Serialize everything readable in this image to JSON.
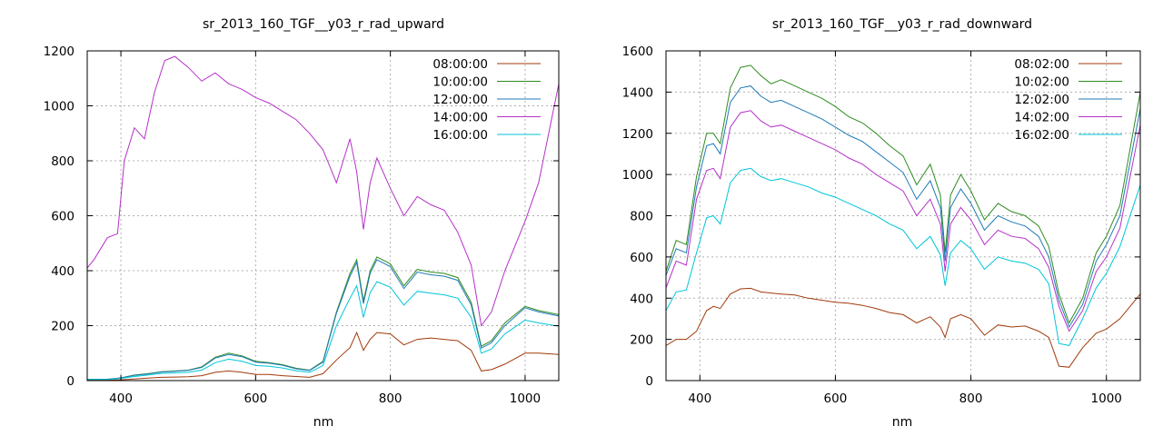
{
  "chart_data": [
    {
      "type": "line",
      "title": "sr_2013_160_TGF__y03_r_rad_upward",
      "xlabel": "nm",
      "ylabel": "",
      "xlim": [
        350,
        1050
      ],
      "ylim": [
        0,
        1200
      ],
      "xticks": [
        400,
        600,
        800,
        1000
      ],
      "yticks": [
        0,
        200,
        400,
        600,
        800,
        1000,
        1200
      ],
      "grid": true,
      "legend": "top-right",
      "series": [
        {
          "name": "08:00:00",
          "color": "#a03a0b",
          "x": [
            350,
            380,
            400,
            420,
            440,
            460,
            480,
            500,
            520,
            540,
            560,
            580,
            600,
            620,
            640,
            660,
            680,
            700,
            720,
            740,
            750,
            760,
            770,
            780,
            800,
            820,
            840,
            860,
            880,
            900,
            920,
            935,
            950,
            970,
            1000,
            1020,
            1050
          ],
          "y": [
            2,
            2,
            3,
            6,
            9,
            12,
            13,
            14,
            18,
            30,
            35,
            30,
            22,
            22,
            18,
            15,
            12,
            25,
            75,
            120,
            175,
            110,
            150,
            175,
            170,
            130,
            150,
            155,
            150,
            145,
            110,
            35,
            40,
            60,
            100,
            100,
            95
          ]
        },
        {
          "name": "10:00:00",
          "color": "#2e8b1f",
          "x": [
            350,
            380,
            400,
            420,
            440,
            460,
            480,
            500,
            520,
            540,
            560,
            580,
            600,
            620,
            640,
            660,
            680,
            700,
            720,
            740,
            750,
            760,
            770,
            780,
            800,
            820,
            840,
            860,
            880,
            900,
            920,
            935,
            950,
            970,
            1000,
            1020,
            1050
          ],
          "y": [
            5,
            5,
            10,
            20,
            25,
            32,
            35,
            38,
            50,
            85,
            100,
            90,
            70,
            65,
            58,
            45,
            38,
            70,
            250,
            390,
            440,
            290,
            400,
            450,
            425,
            345,
            405,
            395,
            390,
            375,
            285,
            125,
            145,
            210,
            270,
            255,
            240
          ]
        },
        {
          "name": "12:00:00",
          "color": "#1f7ab8",
          "x": [
            350,
            380,
            400,
            420,
            440,
            460,
            480,
            500,
            520,
            540,
            560,
            580,
            600,
            620,
            640,
            660,
            680,
            700,
            720,
            740,
            750,
            760,
            770,
            780,
            800,
            820,
            840,
            860,
            880,
            900,
            920,
            935,
            950,
            970,
            1000,
            1020,
            1050
          ],
          "y": [
            5,
            5,
            10,
            19,
            24,
            31,
            34,
            37,
            48,
            82,
            95,
            87,
            67,
            63,
            56,
            43,
            37,
            67,
            245,
            380,
            430,
            280,
            390,
            440,
            415,
            335,
            395,
            385,
            380,
            365,
            275,
            118,
            138,
            200,
            265,
            250,
            235
          ]
        },
        {
          "name": "14:00:00",
          "color": "#b531c8",
          "x": [
            350,
            360,
            380,
            395,
            405,
            420,
            435,
            450,
            465,
            480,
            500,
            520,
            540,
            560,
            580,
            600,
            620,
            640,
            660,
            680,
            700,
            720,
            740,
            750,
            760,
            770,
            780,
            800,
            820,
            840,
            860,
            880,
            900,
            920,
            935,
            950,
            970,
            1000,
            1020,
            1050
          ],
          "y": [
            410,
            440,
            520,
            535,
            800,
            920,
            880,
            1050,
            1165,
            1180,
            1140,
            1090,
            1120,
            1080,
            1060,
            1030,
            1010,
            980,
            950,
            900,
            840,
            720,
            880,
            760,
            550,
            720,
            810,
            700,
            600,
            670,
            640,
            620,
            540,
            420,
            200,
            250,
            400,
            580,
            720,
            1080
          ]
        },
        {
          "name": "16:00:00",
          "color": "#00c5d8",
          "x": [
            350,
            380,
            400,
            420,
            440,
            460,
            480,
            500,
            520,
            540,
            560,
            580,
            600,
            620,
            640,
            660,
            680,
            700,
            720,
            740,
            750,
            760,
            770,
            780,
            800,
            820,
            840,
            860,
            880,
            900,
            920,
            935,
            950,
            970,
            1000,
            1020,
            1050
          ],
          "y": [
            4,
            4,
            8,
            15,
            20,
            26,
            28,
            30,
            38,
            65,
            78,
            70,
            55,
            52,
            46,
            36,
            30,
            55,
            200,
            300,
            345,
            230,
            320,
            360,
            340,
            275,
            325,
            318,
            312,
            300,
            230,
            100,
            115,
            170,
            220,
            210,
            198
          ]
        }
      ]
    },
    {
      "type": "line",
      "title": "sr_2013_160_TGF__y03_r_rad_downward",
      "xlabel": "nm",
      "ylabel": "",
      "xlim": [
        350,
        1050
      ],
      "ylim": [
        0,
        1600
      ],
      "xticks": [
        400,
        600,
        800,
        1000
      ],
      "yticks": [
        0,
        200,
        400,
        600,
        800,
        1000,
        1200,
        1400,
        1600
      ],
      "grid": true,
      "legend": "top-right",
      "series": [
        {
          "name": "08:02:00",
          "color": "#a03a0b",
          "x": [
            350,
            365,
            380,
            395,
            410,
            420,
            430,
            445,
            460,
            475,
            490,
            505,
            520,
            540,
            560,
            580,
            600,
            620,
            640,
            660,
            680,
            700,
            720,
            740,
            755,
            762,
            770,
            785,
            800,
            820,
            840,
            860,
            880,
            900,
            915,
            930,
            945,
            965,
            985,
            1000,
            1020,
            1050
          ],
          "y": [
            170,
            200,
            200,
            240,
            340,
            360,
            350,
            420,
            445,
            448,
            430,
            425,
            420,
            415,
            400,
            390,
            380,
            375,
            365,
            350,
            330,
            320,
            280,
            310,
            260,
            210,
            300,
            320,
            300,
            220,
            270,
            260,
            265,
            240,
            210,
            70,
            65,
            160,
            230,
            250,
            300,
            420
          ]
        },
        {
          "name": "10:02:00",
          "color": "#2e8b1f",
          "x": [
            350,
            365,
            380,
            395,
            410,
            420,
            430,
            445,
            460,
            475,
            490,
            505,
            520,
            540,
            560,
            580,
            600,
            620,
            640,
            660,
            680,
            700,
            720,
            740,
            755,
            762,
            770,
            785,
            800,
            820,
            840,
            860,
            880,
            900,
            915,
            930,
            945,
            965,
            985,
            1000,
            1020,
            1050
          ],
          "y": [
            530,
            680,
            660,
            990,
            1200,
            1200,
            1150,
            1420,
            1520,
            1530,
            1480,
            1440,
            1460,
            1430,
            1400,
            1370,
            1330,
            1280,
            1250,
            1200,
            1140,
            1090,
            950,
            1050,
            900,
            620,
            900,
            1000,
            920,
            780,
            860,
            820,
            800,
            750,
            650,
            420,
            280,
            400,
            620,
            700,
            850,
            1400
          ]
        },
        {
          "name": "12:02:00",
          "color": "#1f7ab8",
          "x": [
            350,
            365,
            380,
            395,
            410,
            420,
            430,
            445,
            460,
            475,
            490,
            505,
            520,
            540,
            560,
            580,
            600,
            620,
            640,
            660,
            680,
            700,
            720,
            740,
            755,
            762,
            770,
            785,
            800,
            820,
            840,
            860,
            880,
            900,
            915,
            930,
            945,
            965,
            985,
            1000,
            1020,
            1050
          ],
          "y": [
            510,
            640,
            620,
            940,
            1140,
            1150,
            1100,
            1350,
            1420,
            1430,
            1380,
            1350,
            1360,
            1330,
            1300,
            1270,
            1230,
            1190,
            1160,
            1110,
            1060,
            1010,
            880,
            970,
            840,
            580,
            840,
            930,
            860,
            730,
            800,
            770,
            750,
            700,
            600,
            390,
            260,
            370,
            580,
            660,
            800,
            1320
          ]
        },
        {
          "name": "14:02:00",
          "color": "#b531c8",
          "x": [
            350,
            365,
            380,
            395,
            410,
            420,
            430,
            445,
            460,
            475,
            490,
            505,
            520,
            540,
            560,
            580,
            600,
            620,
            640,
            660,
            680,
            700,
            720,
            740,
            755,
            762,
            770,
            785,
            800,
            820,
            840,
            860,
            880,
            900,
            915,
            930,
            945,
            965,
            985,
            1000,
            1020,
            1050
          ],
          "y": [
            450,
            580,
            560,
            880,
            1020,
            1030,
            980,
            1230,
            1300,
            1310,
            1260,
            1230,
            1240,
            1210,
            1180,
            1150,
            1120,
            1080,
            1050,
            1000,
            960,
            920,
            800,
            880,
            760,
            530,
            760,
            840,
            780,
            660,
            730,
            700,
            690,
            640,
            550,
            360,
            240,
            340,
            530,
            600,
            740,
            1240
          ]
        },
        {
          "name": "16:02:00",
          "color": "#00c5d8",
          "x": [
            350,
            365,
            380,
            395,
            410,
            420,
            430,
            445,
            460,
            475,
            490,
            505,
            520,
            540,
            560,
            580,
            600,
            620,
            640,
            660,
            680,
            700,
            720,
            740,
            755,
            762,
            770,
            785,
            800,
            820,
            840,
            860,
            880,
            900,
            915,
            930,
            945,
            965,
            985,
            1000,
            1020,
            1050
          ],
          "y": [
            340,
            430,
            440,
            620,
            790,
            800,
            760,
            960,
            1020,
            1030,
            990,
            970,
            980,
            960,
            940,
            910,
            890,
            860,
            830,
            800,
            760,
            730,
            640,
            700,
            610,
            460,
            620,
            680,
            640,
            540,
            600,
            580,
            570,
            540,
            470,
            180,
            170,
            300,
            450,
            520,
            650,
            950
          ]
        }
      ]
    }
  ]
}
